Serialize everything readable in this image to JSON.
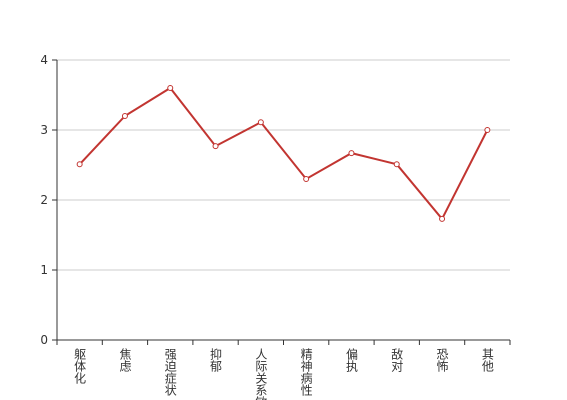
{
  "chart_data": {
    "type": "line",
    "categories": [
      "躯体化",
      "焦虑",
      "强迫症状",
      "抑郁",
      "人际关系敏感",
      "精神病性",
      "偏执",
      "敌对",
      "恐怖",
      "其他"
    ],
    "values": [
      2.51,
      3.2,
      3.6,
      2.77,
      3.11,
      2.3,
      2.67,
      2.51,
      1.73,
      3.0
    ],
    "color": "#c23531",
    "ylim": [
      0,
      4
    ],
    "yticks": [
      0,
      1,
      2,
      3,
      4
    ],
    "grid": true
  }
}
